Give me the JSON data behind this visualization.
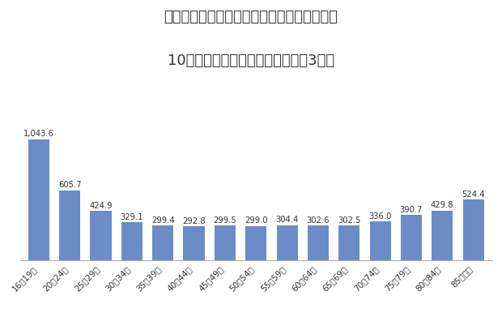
{
  "title_line1": "原付以上運転者（第１当事者）の免許保有者",
  "title_line2": "10万人当たり交通事故件数（令和3年）",
  "categories": [
    "16～19歳",
    "20～24歳",
    "25～29歳",
    "30～34歳",
    "35～39歳",
    "40～44歳",
    "45～49歳",
    "50～54歳",
    "55～59歳",
    "60～64歳",
    "65～69歳",
    "70～74歳",
    "75～79歳",
    "80～84歳",
    "85歳以上"
  ],
  "values": [
    1043.6,
    605.7,
    424.9,
    329.1,
    299.4,
    292.8,
    299.5,
    299.0,
    304.4,
    302.6,
    302.5,
    336.0,
    390.7,
    429.8,
    524.4
  ],
  "bar_color": "#6B8CC7",
  "background_color": "#FFFFFF",
  "ylim": [
    0,
    1150
  ],
  "label_fontsize": 7.5,
  "title_fontsize": 13,
  "value_label_fontsize": 7.2
}
